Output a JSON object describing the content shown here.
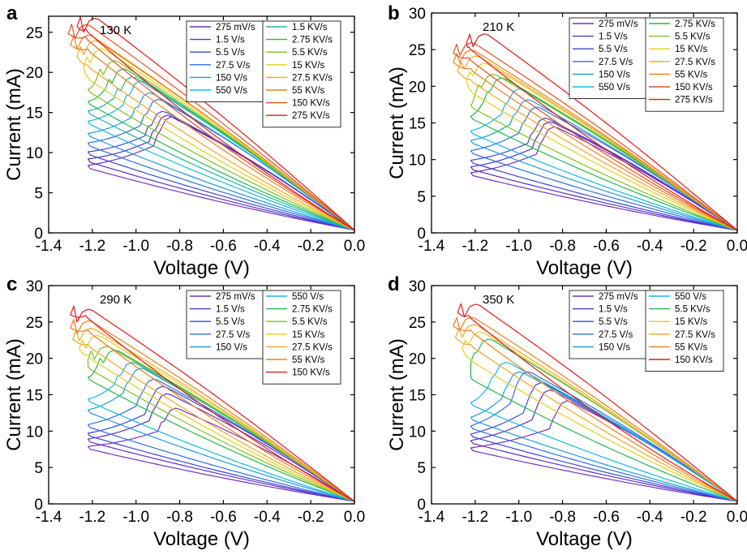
{
  "figure": {
    "panels": [
      "a",
      "b",
      "c",
      "d"
    ]
  },
  "chart_data": [
    {
      "panel": "a",
      "type": "line",
      "temperature": "130 K",
      "xlabel": "Voltage (V)",
      "ylabel": "Current (mA)",
      "xlim": [
        -1.4,
        0.0
      ],
      "ylim": [
        0,
        27
      ],
      "xticks": [
        "-1.4",
        "-1.2",
        "-1.0",
        "-0.8",
        "-0.6",
        "-0.4",
        "-0.2",
        "0.0"
      ],
      "yticks": [
        "0",
        "5",
        "10",
        "15",
        "20",
        "25"
      ],
      "legend_position": "top-right",
      "grid": false,
      "series": [
        {
          "name": "275 mV/s",
          "color": "#7b2fbe",
          "vmin": -1.22,
          "i_low": 8.0,
          "v_peak": -0.82,
          "i_peak": 14.3
        },
        {
          "name": "1.5 V/s",
          "color": "#5a2fc6",
          "vmin": -1.22,
          "i_low": 8.8,
          "v_peak": -0.84,
          "i_peak": 14.5
        },
        {
          "name": "5.5 V/s",
          "color": "#3848d8",
          "vmin": -1.22,
          "i_low": 9.7,
          "v_peak": -0.86,
          "i_peak": 15.0
        },
        {
          "name": "27.5 V/s",
          "color": "#2f6fe6",
          "vmin": -1.22,
          "i_low": 10.8,
          "v_peak": -0.88,
          "i_peak": 16.5
        },
        {
          "name": "150 V/s",
          "color": "#1f9ad8",
          "vmin": -1.22,
          "i_low": 12.0,
          "v_peak": -0.92,
          "i_peak": 17.3
        },
        {
          "name": "550 V/s",
          "color": "#14b8e8",
          "vmin": -1.22,
          "i_low": 13.5,
          "v_peak": -0.96,
          "i_peak": 18.8
        },
        {
          "name": "1.5 KV/s",
          "color": "#1fb5a0",
          "vmin": -1.22,
          "i_low": 14.8,
          "v_peak": -1.0,
          "i_peak": 19.3
        },
        {
          "name": "2.75 KV/s",
          "color": "#25b849",
          "vmin": -1.22,
          "i_low": 16.0,
          "v_peak": -1.04,
          "i_peak": 20.3
        },
        {
          "name": "5.5 KV/s",
          "color": "#7fc21f",
          "vmin": -1.22,
          "i_low": 17.5,
          "v_peak": -1.08,
          "i_peak": 21.3
        },
        {
          "name": "15 KV/s",
          "color": "#e3cf1a",
          "vmin": -1.22,
          "i_low": 19.0,
          "v_peak": -1.14,
          "i_peak": 22.8
        },
        {
          "name": "27.5 KV/s",
          "color": "#f5a623",
          "vmin": -1.22,
          "i_low": 20.5,
          "v_peak": -1.17,
          "i_peak": 23.8
        },
        {
          "name": "55 KV/s",
          "color": "#f07f1a",
          "vmin": -1.22,
          "i_low": 22.5,
          "v_peak": -1.2,
          "i_peak": 24.5
        },
        {
          "name": "150 KV/s",
          "color": "#e8501e",
          "vmin": -1.23,
          "i_low": 24.0,
          "v_peak": -1.21,
          "i_peak": 25.8
        },
        {
          "name": "275 KV/s",
          "color": "#e31a1c",
          "vmin": -1.23,
          "i_low": 25.0,
          "v_peak": -1.17,
          "i_peak": 26.6
        }
      ]
    },
    {
      "panel": "b",
      "type": "line",
      "temperature": "210 K",
      "xlabel": "Voltage (V)",
      "ylabel": "Current (mA)",
      "xlim": [
        -1.4,
        0.0
      ],
      "ylim": [
        0,
        30
      ],
      "xticks": [
        "-1.4",
        "-1.2",
        "-1.0",
        "-0.8",
        "-0.6",
        "-0.4",
        "-0.2",
        "0.0"
      ],
      "yticks": [
        "0",
        "5",
        "10",
        "15",
        "20",
        "25",
        "30"
      ],
      "legend_position": "top-right",
      "grid": false,
      "series": [
        {
          "name": "275 mV/s",
          "color": "#7b2fbe",
          "vmin": -1.22,
          "i_low": 7.8,
          "v_peak": -0.82,
          "i_peak": 14.3
        },
        {
          "name": "1.5 V/s",
          "color": "#5a2fc6",
          "vmin": -1.22,
          "i_low": 8.6,
          "v_peak": -0.84,
          "i_peak": 15.0
        },
        {
          "name": "5.5 V/s",
          "color": "#3848d8",
          "vmin": -1.22,
          "i_low": 9.5,
          "v_peak": -0.86,
          "i_peak": 15.5
        },
        {
          "name": "27.5 V/s",
          "color": "#2f6fe6",
          "vmin": -1.22,
          "i_low": 10.8,
          "v_peak": -0.9,
          "i_peak": 17.0
        },
        {
          "name": "150 V/s",
          "color": "#1f9ad8",
          "vmin": -1.22,
          "i_low": 12.2,
          "v_peak": -0.94,
          "i_peak": 18.0
        },
        {
          "name": "550 V/s",
          "color": "#14b8e8",
          "vmin": -1.22,
          "i_low": 13.5,
          "v_peak": -0.98,
          "i_peak": 19.5
        },
        {
          "name": "2.75 KV/s",
          "color": "#25b849",
          "vmin": -1.22,
          "i_low": 15.5,
          "v_peak": -1.06,
          "i_peak": 21.0
        },
        {
          "name": "5.5 KV/s",
          "color": "#7fc21f",
          "vmin": -1.22,
          "i_low": 17.0,
          "v_peak": -1.1,
          "i_peak": 21.5
        },
        {
          "name": "15 KV/s",
          "color": "#e3cf1a",
          "vmin": -1.22,
          "i_low": 19.0,
          "v_peak": -1.14,
          "i_peak": 23.0
        },
        {
          "name": "27.5 KV/s",
          "color": "#f5a623",
          "vmin": -1.22,
          "i_low": 20.5,
          "v_peak": -1.18,
          "i_peak": 24.0
        },
        {
          "name": "55 KV/s",
          "color": "#f07f1a",
          "vmin": -1.22,
          "i_low": 22.0,
          "v_peak": -1.2,
          "i_peak": 24.8
        },
        {
          "name": "150 KV/s",
          "color": "#e8501e",
          "vmin": -1.23,
          "i_low": 23.5,
          "v_peak": -1.2,
          "i_peak": 25.8
        },
        {
          "name": "275 KV/s",
          "color": "#e31a1c",
          "vmin": -1.23,
          "i_low": 25.0,
          "v_peak": -1.14,
          "i_peak": 27.0
        }
      ]
    },
    {
      "panel": "c",
      "type": "line",
      "temperature": "290 K",
      "xlabel": "Voltage (V)",
      "ylabel": "Current (mA)",
      "xlim": [
        -1.4,
        0.0
      ],
      "ylim": [
        0,
        30
      ],
      "xticks": [
        "-1.4",
        "-1.2",
        "-1.0",
        "-0.8",
        "-0.6",
        "-0.4",
        "-0.2",
        "0.0"
      ],
      "yticks": [
        "0",
        "5",
        "10",
        "15",
        "20",
        "25",
        "30"
      ],
      "legend_position": "top-right",
      "grid": false,
      "series": [
        {
          "name": "275 mV/s",
          "color": "#7b2fbe",
          "vmin": -1.22,
          "i_low": 7.5,
          "v_peak": -0.8,
          "i_peak": 13.0
        },
        {
          "name": "1.5 V/s",
          "color": "#5a2fc6",
          "vmin": -1.22,
          "i_low": 8.5,
          "v_peak": -0.84,
          "i_peak": 15.0
        },
        {
          "name": "5.5 V/s",
          "color": "#3848d8",
          "vmin": -1.22,
          "i_low": 9.3,
          "v_peak": -0.86,
          "i_peak": 16.0
        },
        {
          "name": "27.5 V/s",
          "color": "#2f6fe6",
          "vmin": -1.22,
          "i_low": 10.5,
          "v_peak": -0.9,
          "i_peak": 17.0
        },
        {
          "name": "150 V/s",
          "color": "#1f9ad8",
          "vmin": -1.22,
          "i_low": 12.5,
          "v_peak": -0.96,
          "i_peak": 18.5
        },
        {
          "name": "550 V/s",
          "color": "#14b8e8",
          "vmin": -1.22,
          "i_low": 14.0,
          "v_peak": -1.0,
          "i_peak": 19.3
        },
        {
          "name": "2.75 KV/s",
          "color": "#25b849",
          "vmin": -1.22,
          "i_low": 17.0,
          "v_peak": -1.08,
          "i_peak": 21.0
        },
        {
          "name": "5.5 KV/s",
          "color": "#7fc21f",
          "vmin": -1.22,
          "i_low": 18.5,
          "v_peak": -1.12,
          "i_peak": 21.5
        },
        {
          "name": "15 KV/s",
          "color": "#e3cf1a",
          "vmin": -1.22,
          "i_low": 20.0,
          "v_peak": -1.16,
          "i_peak": 23.0
        },
        {
          "name": "27.5 KV/s",
          "color": "#f5a623",
          "vmin": -1.22,
          "i_low": 21.5,
          "v_peak": -1.19,
          "i_peak": 24.0
        },
        {
          "name": "55 KV/s",
          "color": "#f07f1a",
          "vmin": -1.22,
          "i_low": 23.5,
          "v_peak": -1.2,
          "i_peak": 25.0
        },
        {
          "name": "150 KV/s",
          "color": "#e31a1c",
          "vmin": -1.23,
          "i_low": 25.5,
          "v_peak": -1.2,
          "i_peak": 26.6
        }
      ]
    },
    {
      "panel": "d",
      "type": "line",
      "temperature": "350 K",
      "xlabel": "Voltage (V)",
      "ylabel": "Current (mA)",
      "xlim": [
        -1.4,
        0.0
      ],
      "ylim": [
        0,
        30
      ],
      "xticks": [
        "-1.4",
        "-1.2",
        "-1.0",
        "-0.8",
        "-0.6",
        "-0.4",
        "-0.2",
        "0.0"
      ],
      "yticks": [
        "0",
        "5",
        "10",
        "15",
        "20",
        "25",
        "30"
      ],
      "legend_position": "top-right",
      "grid": false,
      "series": [
        {
          "name": "275 mV/s",
          "color": "#7b2fbe",
          "vmin": -1.22,
          "i_low": 7.3,
          "v_peak": -0.76,
          "i_peak": 14.0
        },
        {
          "name": "1.5 V/s",
          "color": "#5a2fc6",
          "vmin": -1.22,
          "i_low": 8.3,
          "v_peak": -0.84,
          "i_peak": 15.5
        },
        {
          "name": "5.5 V/s",
          "color": "#3848d8",
          "vmin": -1.22,
          "i_low": 9.2,
          "v_peak": -0.88,
          "i_peak": 16.5
        },
        {
          "name": "27.5 V/s",
          "color": "#2f6fe6",
          "vmin": -1.22,
          "i_low": 10.3,
          "v_peak": -0.94,
          "i_peak": 18.0
        },
        {
          "name": "150 V/s",
          "color": "#1f9ad8",
          "vmin": -1.22,
          "i_low": 11.5,
          "v_peak": -0.98,
          "i_peak": 18.0
        },
        {
          "name": "550 V/s",
          "color": "#14b8e8",
          "vmin": -1.22,
          "i_low": 13.5,
          "v_peak": -1.04,
          "i_peak": 19.3
        },
        {
          "name": "5.5 KV/s",
          "color": "#25b849",
          "vmin": -1.22,
          "i_low": 17.0,
          "v_peak": -1.12,
          "i_peak": 22.5
        },
        {
          "name": "15 KV/s",
          "color": "#e3cf1a",
          "vmin": -1.22,
          "i_low": 19.5,
          "v_peak": -1.16,
          "i_peak": 23.5
        },
        {
          "name": "27.5 KV/s",
          "color": "#f5a623",
          "vmin": -1.22,
          "i_low": 21.5,
          "v_peak": -1.19,
          "i_peak": 24.5
        },
        {
          "name": "55 KV/s",
          "color": "#f07f1a",
          "vmin": -1.22,
          "i_low": 23.5,
          "v_peak": -1.2,
          "i_peak": 25.5
        },
        {
          "name": "150 KV/s",
          "color": "#e31a1c",
          "vmin": -1.23,
          "i_low": 25.5,
          "v_peak": -1.18,
          "i_peak": 27.3
        }
      ]
    }
  ]
}
